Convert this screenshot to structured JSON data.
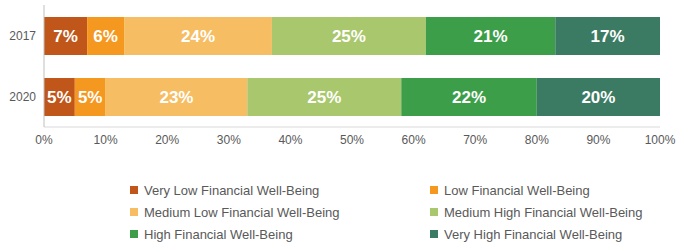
{
  "chart_data": {
    "type": "bar",
    "orientation": "horizontal",
    "stacked": true,
    "data_labels": true,
    "grid": false,
    "legend": "bottom",
    "categories": [
      "2017",
      "2020"
    ],
    "xlim": [
      0,
      100
    ],
    "xticks": [
      {
        "value": 0,
        "label": "0%"
      },
      {
        "value": 10,
        "label": "10%"
      },
      {
        "value": 20,
        "label": "20%"
      },
      {
        "value": 30,
        "label": "30%"
      },
      {
        "value": 40,
        "label": "40%"
      },
      {
        "value": 50,
        "label": "50%"
      },
      {
        "value": 60,
        "label": "60%"
      },
      {
        "value": 70,
        "label": "70%"
      },
      {
        "value": 80,
        "label": "80%"
      },
      {
        "value": 90,
        "label": "90%"
      },
      {
        "value": 100,
        "label": "100%"
      }
    ],
    "series": [
      {
        "name": "Very Low Financial Well-Being",
        "color": "#c0561a",
        "values": [
          7,
          5
        ],
        "value_labels": [
          "7%",
          "5%"
        ]
      },
      {
        "name": "Low Financial Well-Being",
        "color": "#f5981f",
        "values": [
          6,
          5
        ],
        "value_labels": [
          "6%",
          "5%"
        ]
      },
      {
        "name": "Medium Low Financial Well-Being",
        "color": "#f6bd62",
        "values": [
          24,
          23
        ],
        "value_labels": [
          "24%",
          "23%"
        ]
      },
      {
        "name": "Medium High Financial Well-Being",
        "color": "#a9c76c",
        "values": [
          25,
          25
        ],
        "value_labels": [
          "25%",
          "25%"
        ]
      },
      {
        "name": "High Financial Well-Being",
        "color": "#3d9e4a",
        "values": [
          21,
          22
        ],
        "value_labels": [
          "21%",
          "22%"
        ]
      },
      {
        "name": "Very High Financial Well-Being",
        "color": "#3c7b63",
        "values": [
          17,
          20
        ],
        "value_labels": [
          "17%",
          "20%"
        ]
      }
    ]
  }
}
